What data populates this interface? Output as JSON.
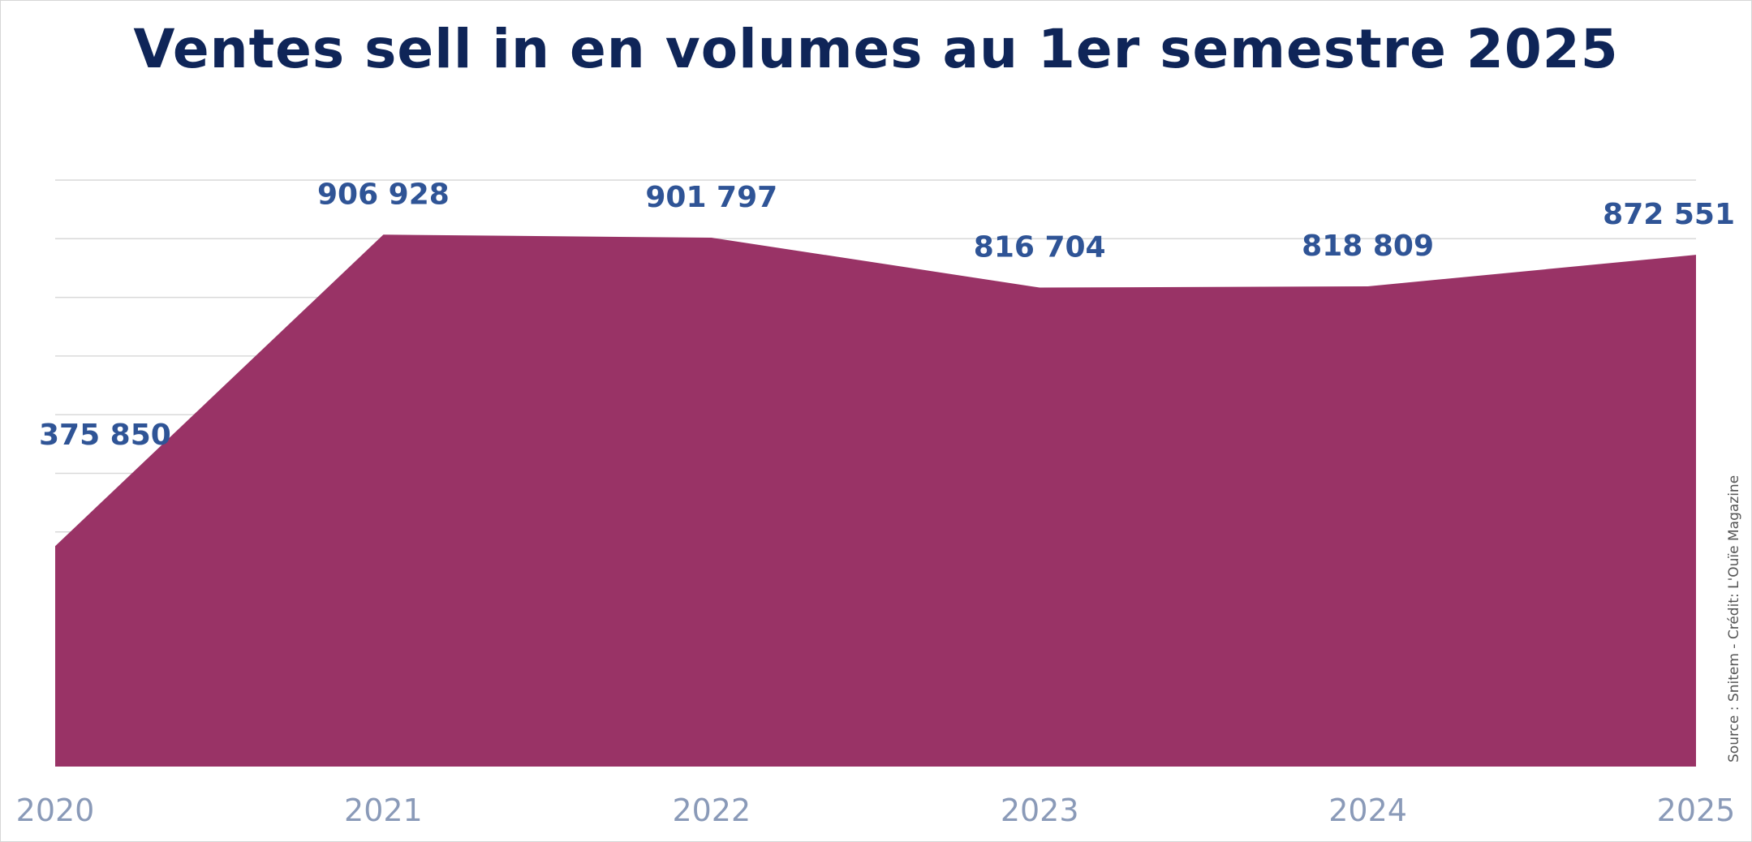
{
  "chart_data": {
    "type": "area",
    "title": "Ventes sell in en volumes au 1er semestre 2025",
    "xlabel": "",
    "ylabel": "",
    "categories": [
      "2020",
      "2021",
      "2022",
      "2023",
      "2024",
      "2025"
    ],
    "series": [
      {
        "values": [
          375850,
          906928,
          901797,
          816704,
          818809,
          872551
        ],
        "labels": [
          "375 850",
          "906 928",
          "901 797",
          "816 704",
          "818 809",
          "872 551"
        ]
      }
    ],
    "ylim": [
      0,
      1000000
    ],
    "y_gridlines": [
      200000,
      300000,
      400000,
      500000,
      600000,
      700000,
      800000,
      900000,
      1000000
    ],
    "y_tick_labels_shown": false,
    "grid": true,
    "legend": "none",
    "fill_color": "#993366",
    "label_color": "#2f5496",
    "tick_color": "#8a9ab8",
    "title_color": "#0f2558",
    "source": "Source : Snitem - Crédit: L'Ouïe Magazine"
  }
}
